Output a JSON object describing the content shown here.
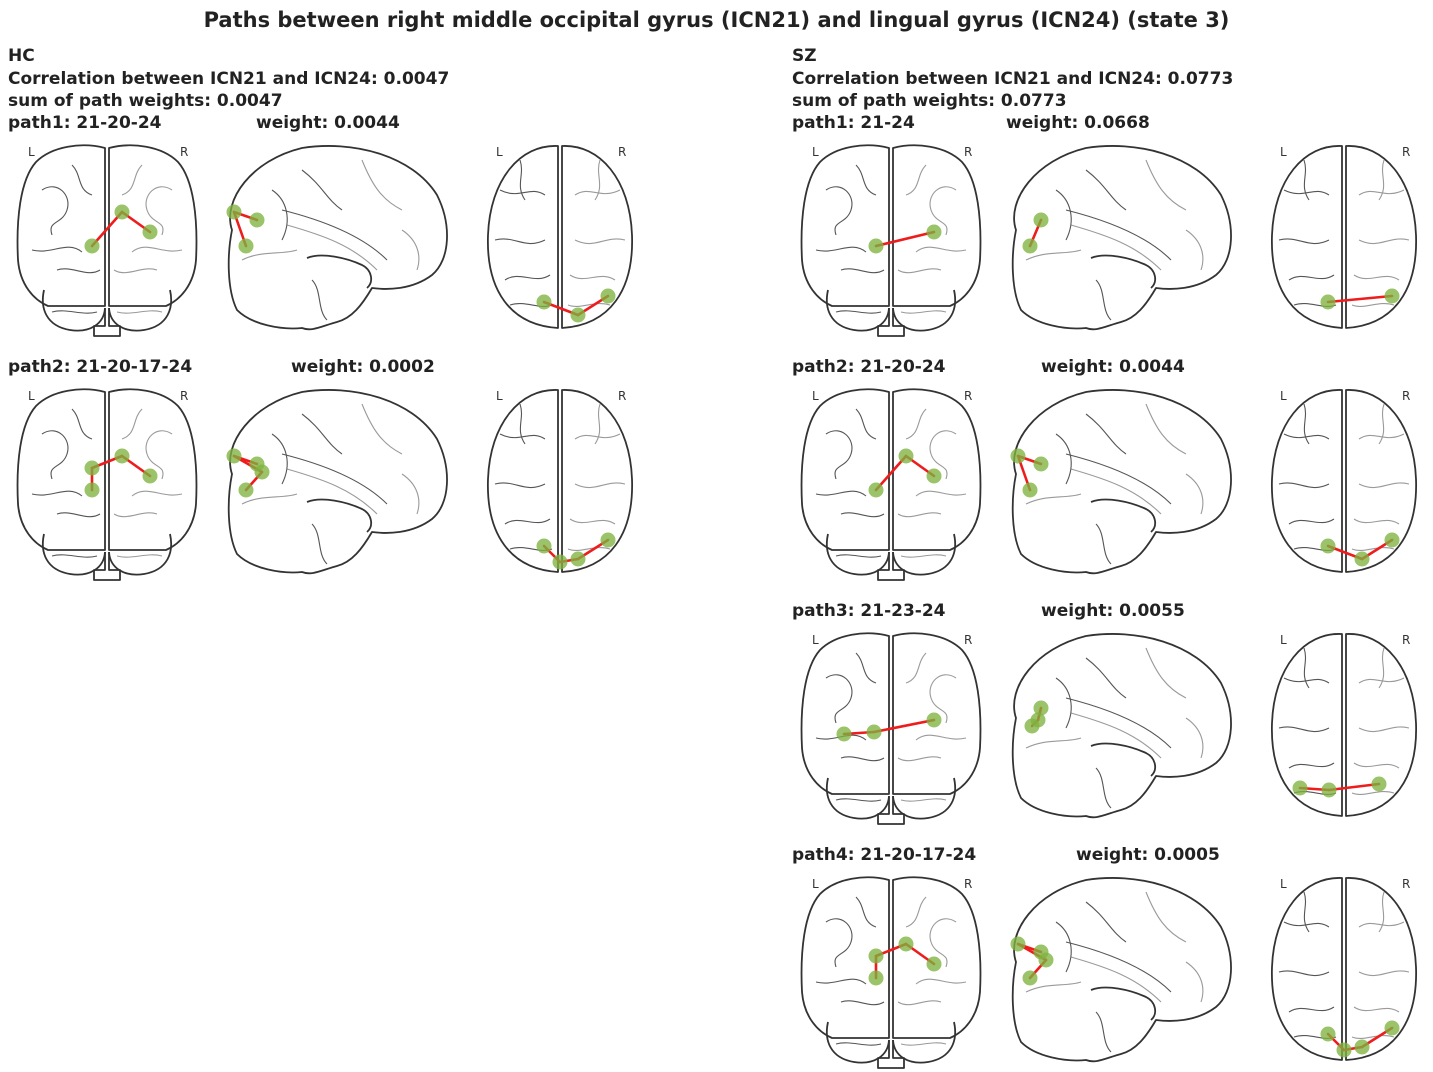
{
  "title": "Paths between right middle occipital gyrus (ICN21) and lingual gyrus (ICN24) (state 3)",
  "side_letters": {
    "left": "L",
    "right": "R"
  },
  "colors": {
    "edge": "#ee1c1c",
    "node": "#7fb23f",
    "outline": "#333333"
  },
  "groups": [
    {
      "id": "hc",
      "label": "HC",
      "correlation": "Correlation between ICN21 and ICN24: 0.0047",
      "sum": "sum of path weights: 0.0047",
      "paths": [
        {
          "label": "path1: 21-20-24",
          "weight": "weight: 0.0044",
          "nodes": [
            "21",
            "20",
            "24"
          ]
        },
        {
          "label": "path2: 21-20-17-24",
          "weight": "weight: 0.0002",
          "nodes": [
            "21",
            "20",
            "17",
            "24"
          ]
        }
      ]
    },
    {
      "id": "sz",
      "label": "SZ",
      "correlation": "Correlation between ICN21 and ICN24: 0.0773",
      "sum": "sum of path weights: 0.0773",
      "paths": [
        {
          "label": "path1: 21-24",
          "weight": "weight: 0.0668",
          "nodes": [
            "21",
            "24"
          ]
        },
        {
          "label": "path2: 21-20-24",
          "weight": "weight: 0.0044",
          "nodes": [
            "21",
            "20",
            "24"
          ]
        },
        {
          "label": "path3: 21-23-24",
          "weight": "weight: 0.0055",
          "nodes": [
            "21",
            "23",
            "24"
          ]
        },
        {
          "label": "path4: 21-20-17-24",
          "weight": "weight: 0.0005",
          "nodes": [
            "21",
            "20",
            "17",
            "24"
          ]
        }
      ]
    }
  ]
}
